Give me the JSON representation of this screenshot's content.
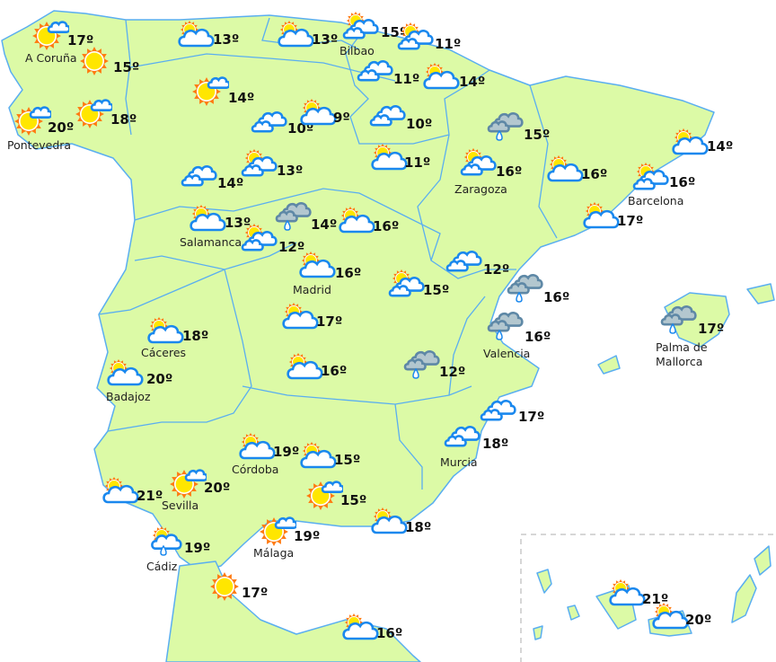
{
  "colors": {
    "land": "#dcfaa6",
    "border": "#5aaef0",
    "sea": "#ffffff",
    "cloud_stroke": "#1a88ee",
    "rain_cloud": "#b3c7cf",
    "sun": "#ffe600",
    "sun_rays": "#ff7a10"
  },
  "stations": [
    {
      "name": "A Coruña",
      "temp": "17º",
      "icon": "sun-cloud"
    },
    {
      "name": "",
      "temp": "15º",
      "icon": "sun"
    },
    {
      "name": "Pontevedra",
      "temp": "20º",
      "icon": "sun-cloud"
    },
    {
      "name": "",
      "temp": "18º",
      "icon": "sun-cloud"
    },
    {
      "name": "",
      "temp": "13º",
      "icon": "partly-cloudy"
    },
    {
      "name": "",
      "temp": "13º",
      "icon": "partly-cloudy"
    },
    {
      "name": "Bilbao",
      "temp": "15º",
      "icon": "sun-clouds"
    },
    {
      "name": "",
      "temp": "11º",
      "icon": "sun-clouds"
    },
    {
      "name": "",
      "temp": "11º",
      "icon": "clouds"
    },
    {
      "name": "",
      "temp": "14º",
      "icon": "partly-cloudy"
    },
    {
      "name": "",
      "temp": "14º",
      "icon": "sun-cloud"
    },
    {
      "name": "",
      "temp": "10º",
      "icon": "clouds"
    },
    {
      "name": "",
      "temp": "9º",
      "icon": "partly-cloudy"
    },
    {
      "name": "",
      "temp": "10º",
      "icon": "clouds"
    },
    {
      "name": "",
      "temp": "11º",
      "icon": "partly-cloudy"
    },
    {
      "name": "",
      "temp": "14º",
      "icon": "clouds"
    },
    {
      "name": "",
      "temp": "13º",
      "icon": "sun-clouds"
    },
    {
      "name": "Salamanca",
      "temp": "13º",
      "icon": "partly-cloudy"
    },
    {
      "name": "",
      "temp": "14º",
      "icon": "rain"
    },
    {
      "name": "",
      "temp": "12º",
      "icon": "sun-clouds"
    },
    {
      "name": "",
      "temp": "16º",
      "icon": "partly-cloudy"
    },
    {
      "name": "Madrid",
      "temp": "16º",
      "icon": "partly-cloudy"
    },
    {
      "name": "",
      "temp": "15º",
      "icon": "sun-clouds"
    },
    {
      "name": "",
      "temp": "12º",
      "icon": "clouds"
    },
    {
      "name": "Zaragoza",
      "temp": "16º",
      "icon": "sun-clouds"
    },
    {
      "name": "",
      "temp": "15º",
      "icon": "rain"
    },
    {
      "name": "",
      "temp": "16º",
      "icon": "partly-cloudy"
    },
    {
      "name": "Barcelona",
      "temp": "16º",
      "icon": "sun-clouds"
    },
    {
      "name": "",
      "temp": "14º",
      "icon": "partly-cloudy"
    },
    {
      "name": "",
      "temp": "17º",
      "icon": "partly-cloudy"
    },
    {
      "name": "",
      "temp": "16º",
      "icon": "rain"
    },
    {
      "name": "Valencia",
      "temp": "16º",
      "icon": "rain"
    },
    {
      "name": "Palma de\nMallorca",
      "temp": "17º",
      "icon": "rain"
    },
    {
      "name": "Cáceres",
      "temp": "18º",
      "icon": "partly-cloudy"
    },
    {
      "name": "Badajoz",
      "temp": "20º",
      "icon": "partly-cloudy"
    },
    {
      "name": "",
      "temp": "17º",
      "icon": "partly-cloudy"
    },
    {
      "name": "",
      "temp": "16º",
      "icon": "partly-cloudy"
    },
    {
      "name": "",
      "temp": "12º",
      "icon": "rain"
    },
    {
      "name": "",
      "temp": "17º",
      "icon": "clouds"
    },
    {
      "name": "Murcia",
      "temp": "18º",
      "icon": "clouds"
    },
    {
      "name": "Córdoba",
      "temp": "19º",
      "icon": "partly-cloudy"
    },
    {
      "name": "",
      "temp": "15º",
      "icon": "partly-cloudy"
    },
    {
      "name": "Sevilla",
      "temp": "20º",
      "icon": "sun-cloud"
    },
    {
      "name": "",
      "temp": "21º",
      "icon": "partly-cloudy"
    },
    {
      "name": "",
      "temp": "15º",
      "icon": "sun-cloud"
    },
    {
      "name": "",
      "temp": "18º",
      "icon": "partly-cloudy"
    },
    {
      "name": "Málaga",
      "temp": "19º",
      "icon": "sun-cloud"
    },
    {
      "name": "Cádiz",
      "temp": "19º",
      "icon": "sun-cloud-drizzle"
    },
    {
      "name": "",
      "temp": "17º",
      "icon": "sun"
    },
    {
      "name": "",
      "temp": "16º",
      "icon": "partly-cloudy"
    },
    {
      "name": "",
      "temp": "21º",
      "icon": "partly-cloudy"
    },
    {
      "name": "",
      "temp": "20º",
      "icon": "partly-cloudy"
    }
  ]
}
